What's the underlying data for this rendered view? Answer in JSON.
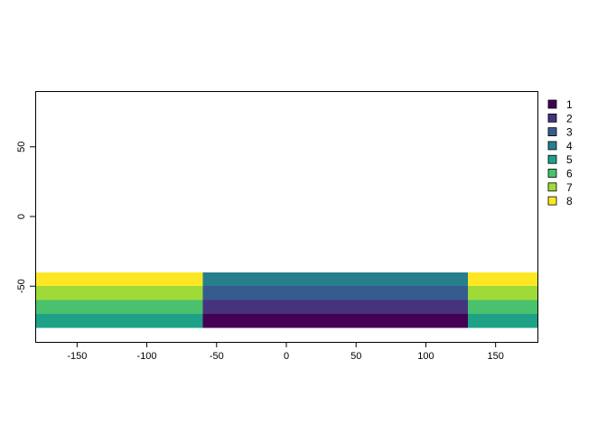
{
  "chart_data": {
    "type": "heatmap",
    "title": "",
    "xlabel": "",
    "ylabel": "",
    "xlim": [
      -180,
      180
    ],
    "ylim": [
      -90,
      90
    ],
    "x_ticks": [
      -150,
      -100,
      -50,
      0,
      50,
      100,
      150
    ],
    "y_ticks": [
      50,
      0,
      -50
    ],
    "palette": {
      "1": "#440154",
      "2": "#46337e",
      "3": "#365c8d",
      "4": "#277f8e",
      "5": "#1fa187",
      "6": "#4ac16d",
      "7": "#a0da39",
      "8": "#fde725"
    },
    "legend": {
      "position": "right",
      "entries": [
        "1",
        "2",
        "3",
        "4",
        "5",
        "6",
        "7",
        "8"
      ]
    },
    "cells": [
      {
        "x0": -180,
        "x1": -60,
        "y0": -50,
        "y1": -40,
        "value": 8
      },
      {
        "x0": -180,
        "x1": -60,
        "y0": -60,
        "y1": -50,
        "value": 7
      },
      {
        "x0": -180,
        "x1": -60,
        "y0": -70,
        "y1": -60,
        "value": 6
      },
      {
        "x0": -180,
        "x1": -60,
        "y0": -80,
        "y1": -70,
        "value": 5
      },
      {
        "x0": -60,
        "x1": 130,
        "y0": -50,
        "y1": -40,
        "value": 4
      },
      {
        "x0": -60,
        "x1": 130,
        "y0": -60,
        "y1": -50,
        "value": 3
      },
      {
        "x0": -60,
        "x1": 130,
        "y0": -70,
        "y1": -60,
        "value": 2
      },
      {
        "x0": -60,
        "x1": 130,
        "y0": -80,
        "y1": -70,
        "value": 1
      },
      {
        "x0": 130,
        "x1": 180,
        "y0": -50,
        "y1": -40,
        "value": 8
      },
      {
        "x0": 130,
        "x1": 180,
        "y0": -60,
        "y1": -50,
        "value": 7
      },
      {
        "x0": 130,
        "x1": 180,
        "y0": -70,
        "y1": -60,
        "value": 6
      },
      {
        "x0": 130,
        "x1": 180,
        "y0": -80,
        "y1": -70,
        "value": 5
      }
    ]
  }
}
